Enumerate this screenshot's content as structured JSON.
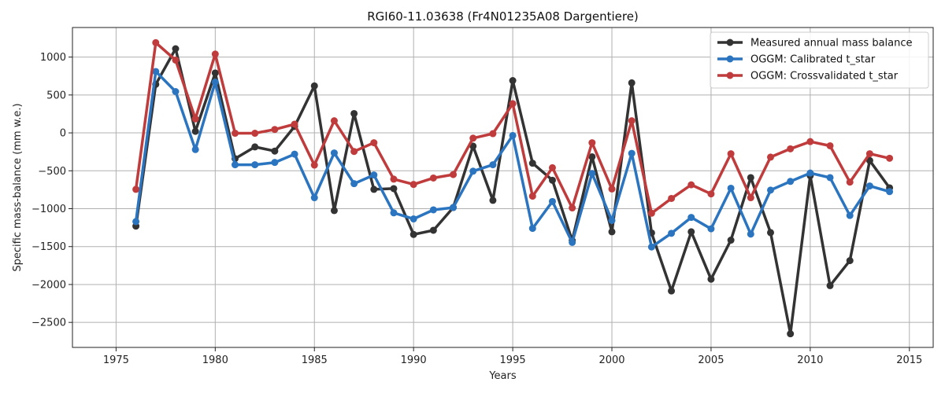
{
  "chart_data": {
    "type": "line",
    "title": "RGI60-11.03638 (Fr4N01235A08 Dargentiere)",
    "xlabel": "Years",
    "ylabel": "Specific mass-balance (mm w.e.)",
    "xlim": [
      1972.8,
      2016.2
    ],
    "ylim": [
      -2830,
      1390
    ],
    "xticks": [
      1975,
      1980,
      1985,
      1990,
      1995,
      2000,
      2005,
      2010,
      2015
    ],
    "yticks": [
      1000,
      500,
      0,
      -500,
      -1000,
      -1500,
      -2000,
      -2500
    ],
    "xtick_labels": [
      "1975",
      "1980",
      "1985",
      "1990",
      "1995",
      "2000",
      "2005",
      "2010",
      "2015"
    ],
    "ytick_labels": [
      "1000",
      "500",
      "0",
      "−500",
      "−1000",
      "−1500",
      "−2000",
      "−2500"
    ],
    "grid": true,
    "legend_position": "top-right",
    "x": [
      1976,
      1977,
      1978,
      1979,
      1980,
      1981,
      1982,
      1983,
      1984,
      1985,
      1986,
      1987,
      1988,
      1989,
      1990,
      1991,
      1992,
      1993,
      1994,
      1995,
      1996,
      1997,
      1998,
      1999,
      2000,
      2001,
      2002,
      2003,
      2004,
      2005,
      2006,
      2007,
      2008,
      2009,
      2010,
      2011,
      2012,
      2013,
      2014
    ],
    "series": [
      {
        "name": "Measured annual mass balance",
        "color": "#333333",
        "values": [
          -1230,
          640,
          1110,
          20,
          790,
          -340,
          -185,
          -240,
          85,
          620,
          -1025,
          255,
          -745,
          -735,
          -1340,
          -1285,
          -985,
          -175,
          -890,
          690,
          -400,
          -625,
          -1420,
          -315,
          -1305,
          660,
          -1320,
          -2085,
          -1305,
          -1930,
          -1415,
          -590,
          -1315,
          -2650,
          -565,
          -2015,
          -1685,
          -365,
          -725
        ]
      },
      {
        "name": "OGGM: Calibrated t_star",
        "color": "#2b75c0",
        "values": [
          -1170,
          810,
          545,
          -220,
          670,
          -420,
          -420,
          -390,
          -280,
          -855,
          -265,
          -670,
          -555,
          -1055,
          -1135,
          -1015,
          -985,
          -505,
          -420,
          -35,
          -1260,
          -905,
          -1445,
          -535,
          -1155,
          -270,
          -1505,
          -1325,
          -1115,
          -1265,
          -730,
          -1335,
          -755,
          -640,
          -530,
          -590,
          -1090,
          -700,
          -775
        ]
      },
      {
        "name": "OGGM: Crossvalidated t_star",
        "color": "#c03c3c",
        "values": [
          -745,
          1190,
          960,
          185,
          1040,
          -5,
          -5,
          45,
          115,
          -425,
          160,
          -245,
          -130,
          -610,
          -680,
          -595,
          -550,
          -70,
          -10,
          385,
          -835,
          -460,
          -990,
          -130,
          -740,
          160,
          -1060,
          -865,
          -685,
          -805,
          -275,
          -855,
          -320,
          -210,
          -115,
          -170,
          -650,
          -275,
          -335
        ]
      }
    ]
  }
}
